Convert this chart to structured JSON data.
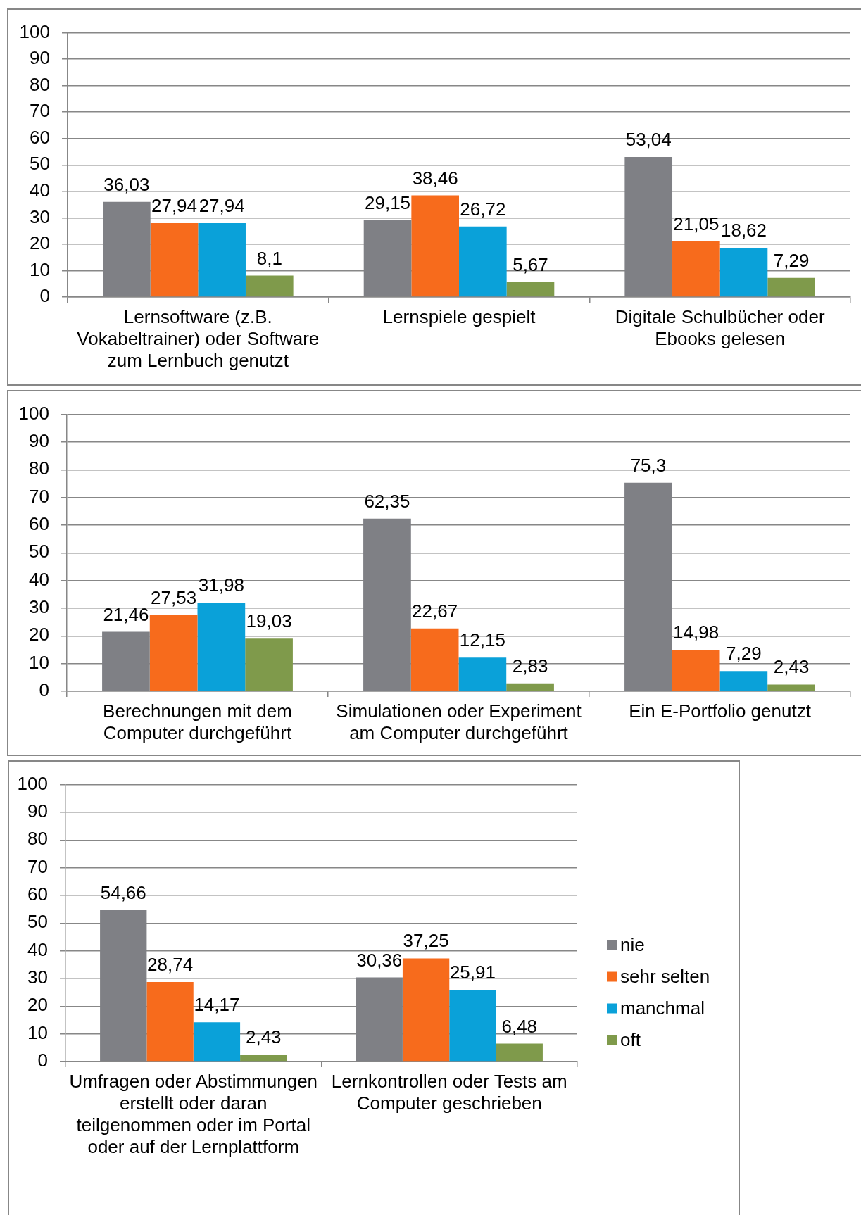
{
  "chart_data": [
    {
      "type": "bar",
      "categories": [
        "Lernsoftware (z.B. Vokabeltrainer) oder Software zum Lernbuch genutzt",
        "Lernspiele gespielt",
        "Digitale Schulbücher oder Ebooks gelesen"
      ],
      "series": [
        {
          "color": "#7f8085",
          "values": [
            36.03,
            29.15,
            53.04
          ],
          "value_labels": [
            "36,03",
            "29,15",
            "53,04"
          ]
        },
        {
          "color": "#f76b1c",
          "values": [
            27.94,
            38.46,
            21.05
          ],
          "value_labels": [
            "27,94",
            "38,46",
            "21,05"
          ]
        },
        {
          "color": "#0aa1d9",
          "values": [
            27.94,
            26.72,
            18.62
          ],
          "value_labels": [
            "27,94",
            "26,72",
            "18,62"
          ]
        },
        {
          "color": "#7f9a4b",
          "values": [
            8.1,
            5.67,
            7.29
          ],
          "value_labels": [
            "8,1",
            "5,67",
            "7,29"
          ]
        }
      ],
      "ylim": [
        0,
        100
      ],
      "yticks": [
        0,
        10,
        20,
        30,
        40,
        50,
        60,
        70,
        80,
        90,
        100
      ],
      "grid": "y"
    },
    {
      "type": "bar",
      "categories": [
        "Berechnungen mit dem Computer durchgeführt",
        "Simulationen oder Experiment am Computer durchgeführt",
        "Ein E-Portfolio genutzt"
      ],
      "series": [
        {
          "color": "#7f8085",
          "values": [
            21.46,
            62.35,
            75.3
          ],
          "value_labels": [
            "21,46",
            "62,35",
            "75,3"
          ]
        },
        {
          "color": "#f76b1c",
          "values": [
            27.53,
            22.67,
            14.98
          ],
          "value_labels": [
            "27,53",
            "22,67",
            "14,98"
          ]
        },
        {
          "color": "#0aa1d9",
          "values": [
            31.98,
            12.15,
            7.29
          ],
          "value_labels": [
            "31,98",
            "12,15",
            "7,29"
          ]
        },
        {
          "color": "#7f9a4b",
          "values": [
            19.03,
            2.83,
            2.43
          ],
          "value_labels": [
            "19,03",
            "2,83",
            "2,43"
          ]
        }
      ],
      "ylim": [
        0,
        100
      ],
      "yticks": [
        0,
        10,
        20,
        30,
        40,
        50,
        60,
        70,
        80,
        90,
        100
      ],
      "grid": "y"
    },
    {
      "type": "bar",
      "categories": [
        "Umfragen oder Abstimmungen erstellt oder daran teilgenommen oder im Portal oder auf der Lernplattform",
        "Lernkontrollen oder Tests am Computer geschrieben"
      ],
      "series": [
        {
          "name": "nie",
          "color": "#7f8085",
          "values": [
            54.66,
            30.36
          ],
          "value_labels": [
            "54,66",
            "30,36"
          ]
        },
        {
          "name": "sehr selten",
          "color": "#f76b1c",
          "values": [
            28.74,
            37.25
          ],
          "value_labels": [
            "28,74",
            "37,25"
          ]
        },
        {
          "name": "manchmal",
          "color": "#0aa1d9",
          "values": [
            14.17,
            25.91
          ],
          "value_labels": [
            "14,17",
            "25,91"
          ]
        },
        {
          "name": "oft",
          "color": "#7f9a4b",
          "values": [
            2.43,
            6.48
          ],
          "value_labels": [
            "2,43",
            "6,48"
          ]
        }
      ],
      "ylim": [
        0,
        100
      ],
      "yticks": [
        0,
        10,
        20,
        30,
        40,
        50,
        60,
        70,
        80,
        90,
        100
      ],
      "grid": "y",
      "legend": "right"
    }
  ]
}
